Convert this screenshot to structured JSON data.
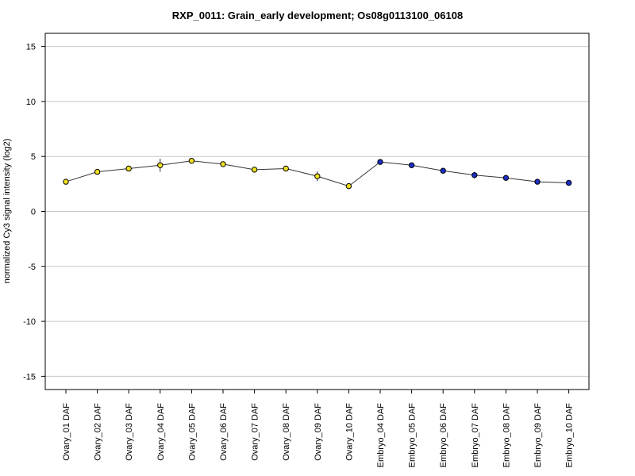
{
  "chart_data": {
    "type": "line",
    "title": "RXP_0011: Grain_early development; Os08g0113100_06108",
    "xlabel": "",
    "ylabel": "normalized Cy3 signal intensity (log2)",
    "ylim": [
      -16.2,
      16.2
    ],
    "yticks": [
      15,
      10,
      5,
      0,
      -5,
      -10,
      -15
    ],
    "grid": "horizontal",
    "categories": [
      "Ovary_01 DAF",
      "Ovary_02 DAF",
      "Ovary_03 DAF",
      "Ovary_04 DAF",
      "Ovary_05 DAF",
      "Ovary_06 DAF",
      "Ovary_07 DAF",
      "Ovary_08 DAF",
      "Ovary_09 DAF",
      "Ovary_10 DAF",
      "Embryo_04 DAF",
      "Embryo_05 DAF",
      "Embryo_06 DAF",
      "Embryo_07 DAF",
      "Embryo_08 DAF",
      "Embryo_09 DAF",
      "Embryo_10 DAF"
    ],
    "values": [
      2.7,
      3.6,
      3.9,
      4.2,
      4.6,
      4.3,
      3.8,
      3.9,
      3.2,
      2.3,
      4.5,
      4.2,
      3.7,
      3.3,
      3.05,
      2.7,
      2.6
    ],
    "error": [
      0.15,
      0.1,
      0.1,
      0.6,
      0.1,
      0.15,
      0.1,
      0.15,
      0.45,
      0.1,
      0.1,
      0.1,
      0.2,
      0.3,
      0.15,
      0.1,
      0.1
    ],
    "point_colors": [
      "#f0e020",
      "#f0e020",
      "#f0e020",
      "#f0e020",
      "#f0e020",
      "#f0e020",
      "#f0e020",
      "#f0e020",
      "#f0e020",
      "#f0e020",
      "#1a2ec8",
      "#1a2ec8",
      "#1a2ec8",
      "#1a2ec8",
      "#1a2ec8",
      "#1a2ec8",
      "#1a2ec8"
    ],
    "line_color": "#333333",
    "grid_color": "#c8c8c8"
  }
}
